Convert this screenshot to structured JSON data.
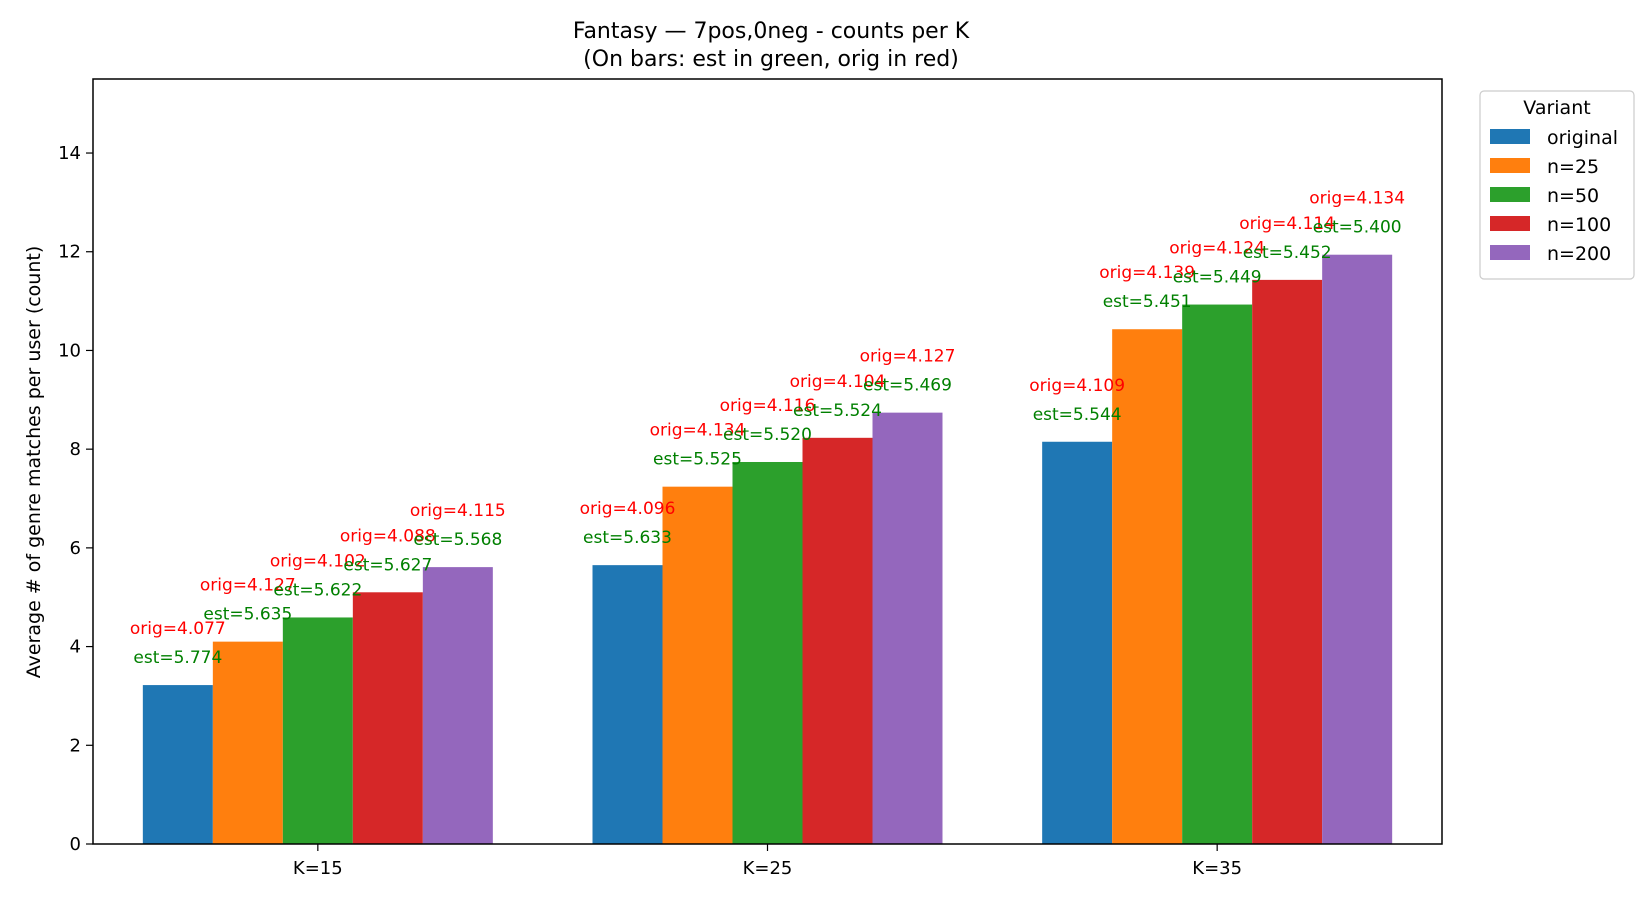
{
  "chart_data": {
    "type": "bar",
    "title": "Fantasy — 7pos,0neg - counts per K",
    "subtitle": "(On bars: est in green, orig in red)",
    "xlabel": "",
    "ylabel": "Average # of genre matches per user (count)",
    "ylim": [
      0,
      15.5
    ],
    "yticks": [
      0,
      2,
      4,
      6,
      8,
      10,
      12,
      14
    ],
    "categories": [
      "K=15",
      "K=25",
      "K=35"
    ],
    "legend": {
      "title": "Variant",
      "placement": "upper-right-outside"
    },
    "series": [
      {
        "name": "original",
        "color": "#1f77b4",
        "values": [
          3.22,
          5.65,
          8.15
        ],
        "est_labels": [
          "est=5.774",
          "est=5.633",
          "est=5.544"
        ],
        "orig_labels": [
          "orig=4.077",
          "orig=4.096",
          "orig=4.109"
        ]
      },
      {
        "name": "n=25",
        "color": "#ff7f0e",
        "values": [
          4.1,
          7.24,
          10.43
        ],
        "est_labels": [
          "est=5.635",
          "est=5.525",
          "est=5.451"
        ],
        "orig_labels": [
          "orig=4.127",
          "orig=4.134",
          "orig=4.139"
        ]
      },
      {
        "name": "n=50",
        "color": "#2ca02c",
        "values": [
          4.59,
          7.74,
          10.93
        ],
        "est_labels": [
          "est=5.622",
          "est=5.520",
          "est=5.449"
        ],
        "orig_labels": [
          "orig=4.102",
          "orig=4.116",
          "orig=4.124"
        ]
      },
      {
        "name": "n=100",
        "color": "#d62728",
        "values": [
          5.1,
          8.23,
          11.43
        ],
        "est_labels": [
          "est=5.627",
          "est=5.524",
          "est=5.452"
        ],
        "orig_labels": [
          "orig=4.088",
          "orig=4.104",
          "orig=4.114"
        ]
      },
      {
        "name": "n=200",
        "color": "#9467bd",
        "values": [
          5.61,
          8.74,
          11.94
        ],
        "est_labels": [
          "est=5.568",
          "est=5.469",
          "est=5.400"
        ],
        "orig_labels": [
          "orig=4.115",
          "orig=4.127",
          "orig=4.134"
        ]
      }
    ],
    "label_colors": {
      "est": "#008000",
      "orig": "#ff0000"
    }
  }
}
